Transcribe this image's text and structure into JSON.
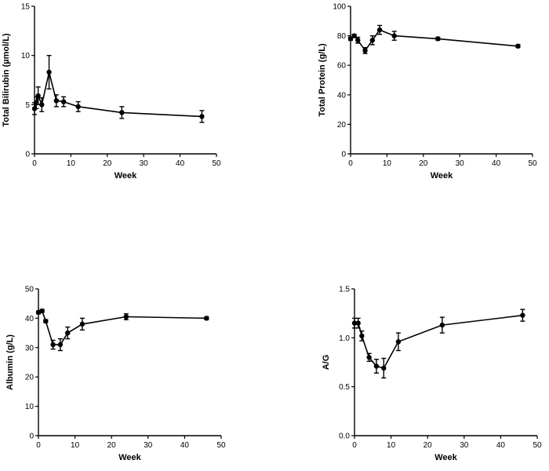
{
  "chart_data": [
    {
      "type": "line",
      "xlabel": "Week",
      "ylabel": "Total Bilirubin (µmol/L)",
      "xlim": [
        0,
        50
      ],
      "ylim": [
        0,
        15
      ],
      "xticks": [
        0,
        10,
        20,
        30,
        40,
        50
      ],
      "yticks": [
        0,
        5,
        10,
        15
      ],
      "grid": false,
      "series": [
        {
          "x": [
            0,
            0.5,
            1,
            2,
            4,
            6,
            8,
            12,
            24,
            46
          ],
          "y": [
            4.6,
            5.2,
            5.9,
            5.0,
            8.3,
            5.4,
            5.3,
            4.8,
            4.2,
            3.8
          ],
          "err": [
            0.6,
            0.6,
            0.9,
            0.7,
            1.7,
            0.6,
            0.5,
            0.5,
            0.6,
            0.6
          ]
        }
      ]
    },
    {
      "type": "line",
      "xlabel": "Week",
      "ylabel": "Total Protein (g/L)",
      "xlim": [
        0,
        50
      ],
      "ylim": [
        0,
        100
      ],
      "xticks": [
        0,
        10,
        20,
        30,
        40,
        50
      ],
      "yticks": [
        0,
        20,
        40,
        60,
        80,
        100
      ],
      "grid": false,
      "series": [
        {
          "x": [
            0,
            1,
            2,
            4,
            6,
            8,
            12,
            24,
            46
          ],
          "y": [
            78,
            80,
            77,
            70,
            77,
            84,
            80,
            78,
            73
          ],
          "err": [
            1,
            1,
            2,
            2,
            3,
            3,
            3,
            1,
            1
          ]
        }
      ]
    },
    {
      "type": "line",
      "xlabel": "Week",
      "ylabel": "Albumin (g/L)",
      "xlim": [
        0,
        50
      ],
      "ylim": [
        0,
        50
      ],
      "xticks": [
        0,
        10,
        20,
        30,
        40,
        50
      ],
      "yticks": [
        0,
        10,
        20,
        30,
        40,
        50
      ],
      "grid": false,
      "series": [
        {
          "x": [
            0,
            1,
            2,
            4,
            6,
            8,
            12,
            24,
            46
          ],
          "y": [
            42,
            42.5,
            39,
            31,
            31,
            35,
            38,
            40.5,
            40
          ],
          "err": [
            0.5,
            0.5,
            0.5,
            1.5,
            2,
            2,
            2,
            1,
            0.5
          ]
        }
      ]
    },
    {
      "type": "line",
      "xlabel": "Week",
      "ylabel": "A/G",
      "xlim": [
        0,
        50
      ],
      "ylim": [
        0,
        1.5
      ],
      "xticks": [
        0,
        10,
        20,
        30,
        40,
        50
      ],
      "yticks": [
        0.0,
        0.5,
        1.0,
        1.5
      ],
      "ytick_labels": [
        "0.0",
        "0.5",
        "1.0",
        "1.5"
      ],
      "grid": false,
      "series": [
        {
          "x": [
            0,
            1,
            2,
            4,
            6,
            8,
            12,
            24,
            46
          ],
          "y": [
            1.15,
            1.15,
            1.02,
            0.8,
            0.71,
            0.69,
            0.96,
            1.13,
            1.23
          ],
          "err": [
            0.05,
            0.05,
            0.05,
            0.04,
            0.07,
            0.1,
            0.09,
            0.08,
            0.06
          ]
        }
      ]
    }
  ]
}
